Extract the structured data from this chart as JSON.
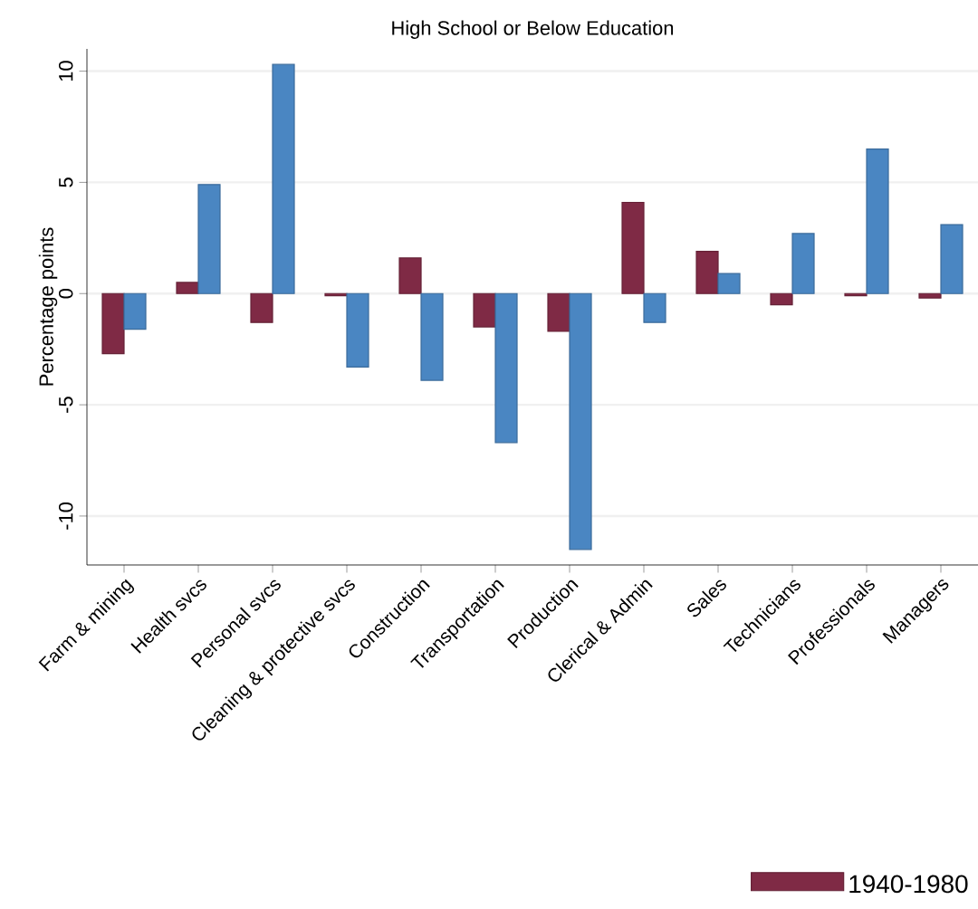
{
  "chart_data": {
    "type": "bar",
    "title": "High School or Below Education",
    "ylabel": "Percentage points",
    "categories": [
      "Farm & mining",
      "Health svcs",
      "Personal svcs",
      "Cleaning & protective svcs",
      "Construction",
      "Transportation",
      "Production",
      "Clerical & Admin",
      "Sales",
      "Technicians",
      "Professionals",
      "Managers"
    ],
    "series": [
      {
        "name": "1940-1980",
        "color": "#7f2a45",
        "values": [
          -2.7,
          0.5,
          -1.3,
          -0.1,
          1.6,
          -1.5,
          -1.7,
          4.1,
          1.9,
          -0.5,
          -0.1,
          -0.2
        ]
      },
      {
        "color": "#4a86c2",
        "values": [
          -1.6,
          4.9,
          10.3,
          -3.3,
          -3.9,
          -6.7,
          -11.5,
          -1.3,
          0.9,
          2.7,
          6.5,
          3.1
        ]
      }
    ],
    "ylim": [
      -12.2,
      11
    ],
    "yticks": [
      -10,
      -5,
      0,
      5,
      10
    ],
    "grid": "y",
    "legend": "bottom right"
  }
}
